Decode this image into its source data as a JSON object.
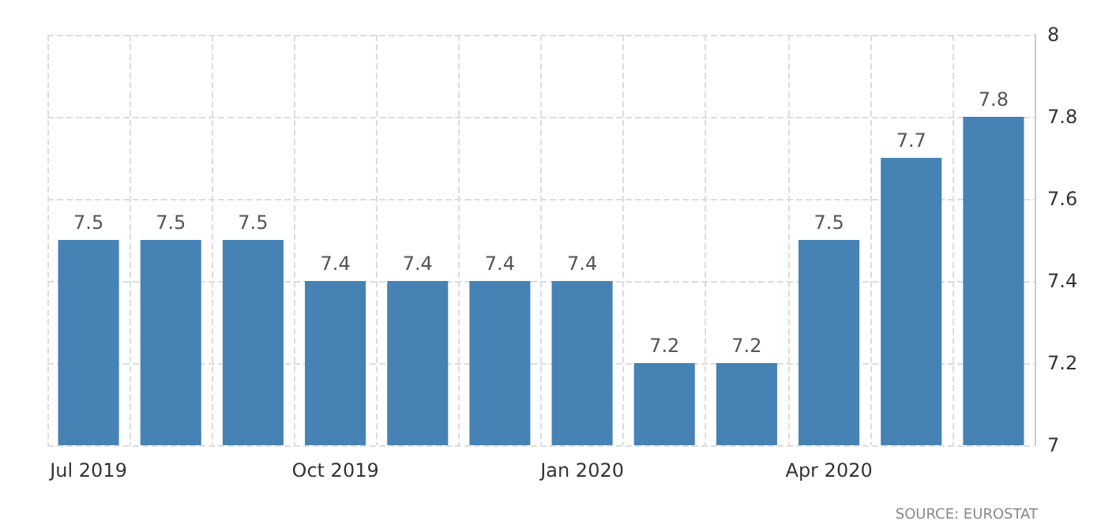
{
  "chart_data": {
    "type": "bar",
    "categories": [
      "Jul 2019",
      null,
      null,
      "Oct 2019",
      null,
      null,
      "Jan 2020",
      null,
      null,
      "Apr 2020",
      null,
      null
    ],
    "values": [
      7.5,
      7.5,
      7.5,
      7.4,
      7.4,
      7.4,
      7.4,
      7.2,
      7.2,
      7.5,
      7.7,
      7.8
    ],
    "color": "#4682b4",
    "ylim": [
      7,
      8
    ],
    "yticks": [
      7,
      7.2,
      7.4,
      7.6,
      7.8,
      8
    ],
    "grid": true,
    "data_labels": true,
    "annotations": [
      "SOURCE: EUROSTAT"
    ]
  }
}
